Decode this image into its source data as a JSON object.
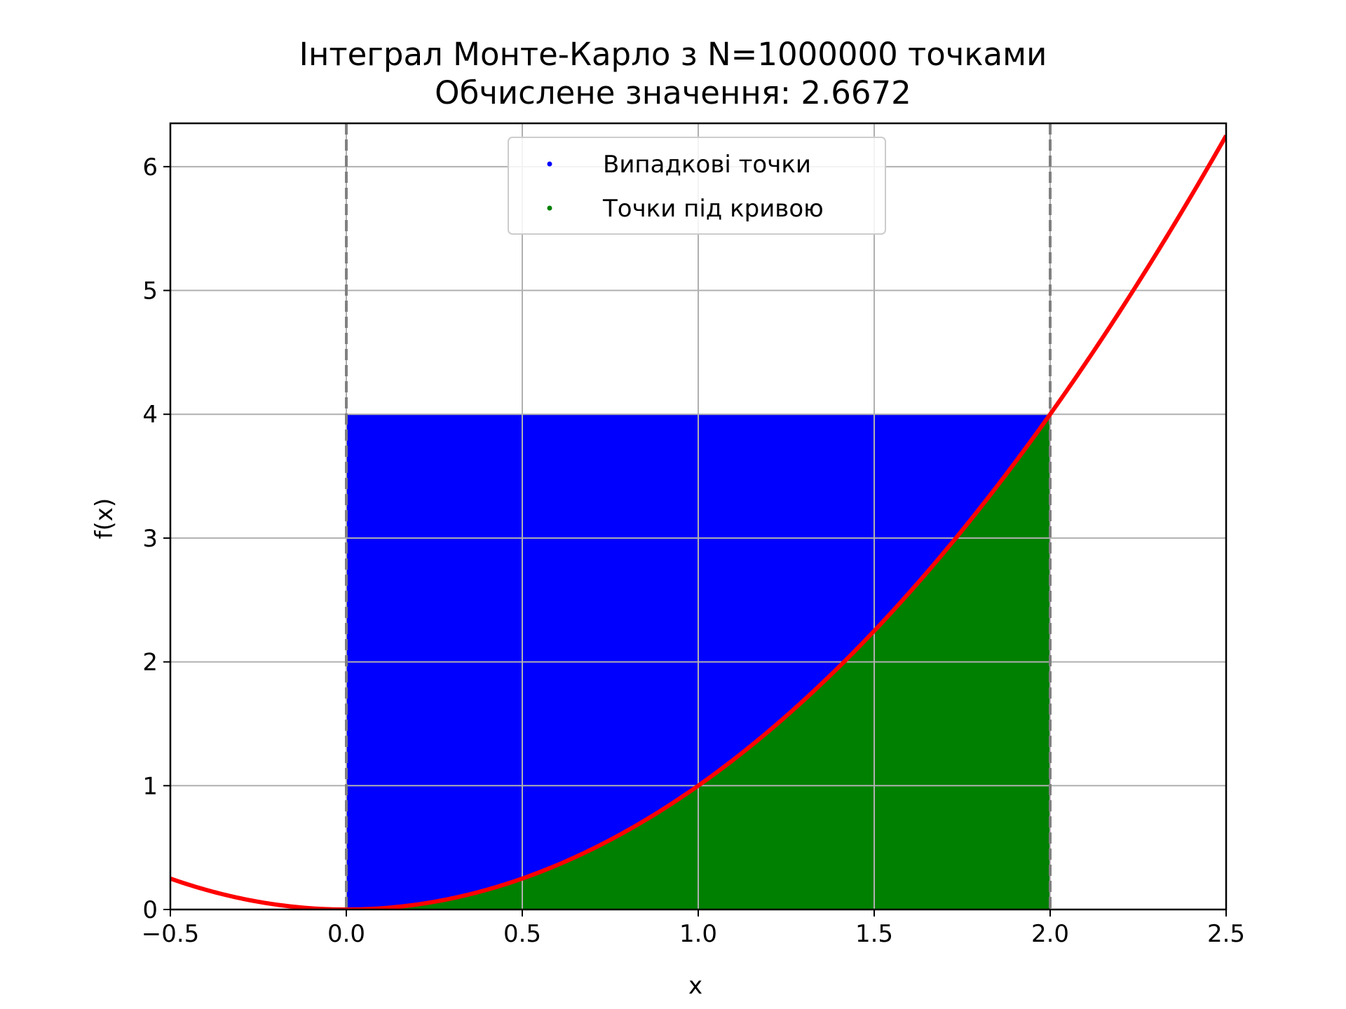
{
  "chart_data": {
    "type": "scatter",
    "title": "Інтеграл Монте-Карло з N=1000000 точками",
    "subtitle": "Обчислене значення: 2.6672",
    "xlabel": "x",
    "ylabel": "f(x)",
    "xlim": [
      -0.5,
      2.5
    ],
    "ylim": [
      0,
      6.35
    ],
    "xticks": [
      "−0.5",
      "0.0",
      "0.5",
      "1.0",
      "1.5",
      "2.0",
      "2.5"
    ],
    "xtick_values": [
      -0.5,
      0.0,
      0.5,
      1.0,
      1.5,
      2.0,
      2.5
    ],
    "yticks": [
      "0",
      "1",
      "2",
      "3",
      "4",
      "5",
      "6"
    ],
    "ytick_values": [
      0,
      1,
      2,
      3,
      4,
      5,
      6
    ],
    "grid": true,
    "legend_position": "upper center",
    "integration_bounds": [
      0.0,
      2.0
    ],
    "sampling_box": {
      "x": [
        0.0,
        2.0
      ],
      "y": [
        0.0,
        4.0
      ]
    },
    "curve": {
      "expression": "x^2",
      "x_range": [
        -0.5,
        2.5
      ],
      "color": "#ff0000"
    },
    "series": [
      {
        "name": "Випадкові точки",
        "color": "#0000ff",
        "region": "all points in sampling box"
      },
      {
        "name": "Точки під кривою",
        "color": "#008000",
        "region": "points with y <= x^2"
      }
    ],
    "bound_line_color": "#808080"
  }
}
